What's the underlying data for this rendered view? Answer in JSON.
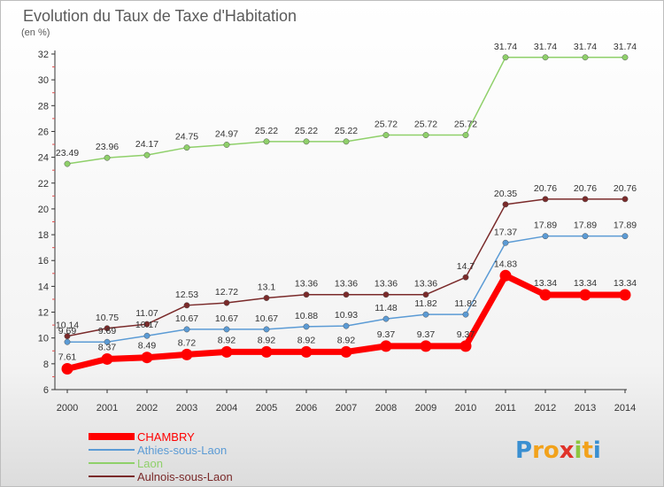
{
  "title": "Evolution du Taux de Taxe d'Habitation",
  "unit_label": "(en %)",
  "brand": "Proxiti",
  "colors": {
    "background_top": "#ffffff",
    "background_bottom": "#dcdcdc",
    "title": "#5a5a5a",
    "axis": "#333333",
    "grid": "#cfcfcf",
    "chambry": "#ff0000",
    "athies": "#5b9bd5",
    "laon": "#8fd06a",
    "aulnois": "#7a2a2a",
    "label": "#333333"
  },
  "chart_data": {
    "type": "line",
    "xlabel": "",
    "ylabel": "(en %)",
    "ylim": [
      6,
      32
    ],
    "yticks": [
      6,
      8,
      10,
      12,
      14,
      16,
      18,
      20,
      22,
      24,
      26,
      28,
      30,
      32
    ],
    "x": [
      "2000",
      "2001",
      "2002",
      "2003",
      "2004",
      "2005",
      "2006",
      "2007",
      "2008",
      "2009",
      "2010",
      "2011",
      "2012",
      "2013",
      "2014"
    ],
    "grid": false,
    "legend_position": "bottom-left",
    "series": [
      {
        "name": "CHAMBRY",
        "key": "chambry",
        "values": [
          7.61,
          8.37,
          8.49,
          8.72,
          8.92,
          8.92,
          8.92,
          8.92,
          9.37,
          9.37,
          9.37,
          14.83,
          13.34,
          13.34,
          13.34
        ],
        "labels": [
          "7.61",
          "8.37",
          "8.49",
          "8.72",
          "8.92",
          "8.92",
          "8.92",
          "8.92",
          "9.37",
          "9.37",
          "9.37",
          "14.83",
          "13.34",
          "13.34",
          "13.34"
        ]
      },
      {
        "name": "Athies-sous-Laon",
        "key": "athies",
        "values": [
          9.69,
          9.69,
          10.17,
          10.67,
          10.67,
          10.67,
          10.88,
          10.93,
          11.48,
          11.82,
          11.82,
          17.37,
          17.89,
          17.89,
          17.89
        ],
        "labels": [
          "9.69",
          "9.69",
          "10.17",
          "10.67",
          "10.67",
          "10.67",
          "10.88",
          "10.93",
          "11.48",
          "11.82",
          "11.82",
          "17.37",
          "17.89",
          "17.89",
          "17.89"
        ]
      },
      {
        "name": "Laon",
        "key": "laon",
        "values": [
          23.49,
          23.96,
          24.17,
          24.75,
          24.97,
          25.22,
          25.22,
          25.22,
          25.72,
          25.72,
          25.72,
          31.74,
          31.74,
          31.74,
          31.74
        ],
        "labels": [
          "23.49",
          "23.96",
          "24.17",
          "24.75",
          "24.97",
          "25.22",
          "25.22",
          "25.22",
          "25.72",
          "25.72",
          "25.72",
          "31.74",
          "31.74",
          "31.74",
          "31.74"
        ]
      },
      {
        "name": "Aulnois-sous-Laon",
        "key": "aulnois",
        "values": [
          10.14,
          10.75,
          11.07,
          12.53,
          12.72,
          13.1,
          13.36,
          13.36,
          13.36,
          13.36,
          14.7,
          20.35,
          20.76,
          20.76,
          20.76
        ],
        "labels": [
          "10.14",
          "10.75",
          "11.07",
          "12.53",
          "12.72",
          "13.1",
          "13.36",
          "13.36",
          "13.36",
          "13.36",
          "14.7",
          "20.35",
          "20.76",
          "20.76",
          "20.76"
        ]
      }
    ]
  }
}
